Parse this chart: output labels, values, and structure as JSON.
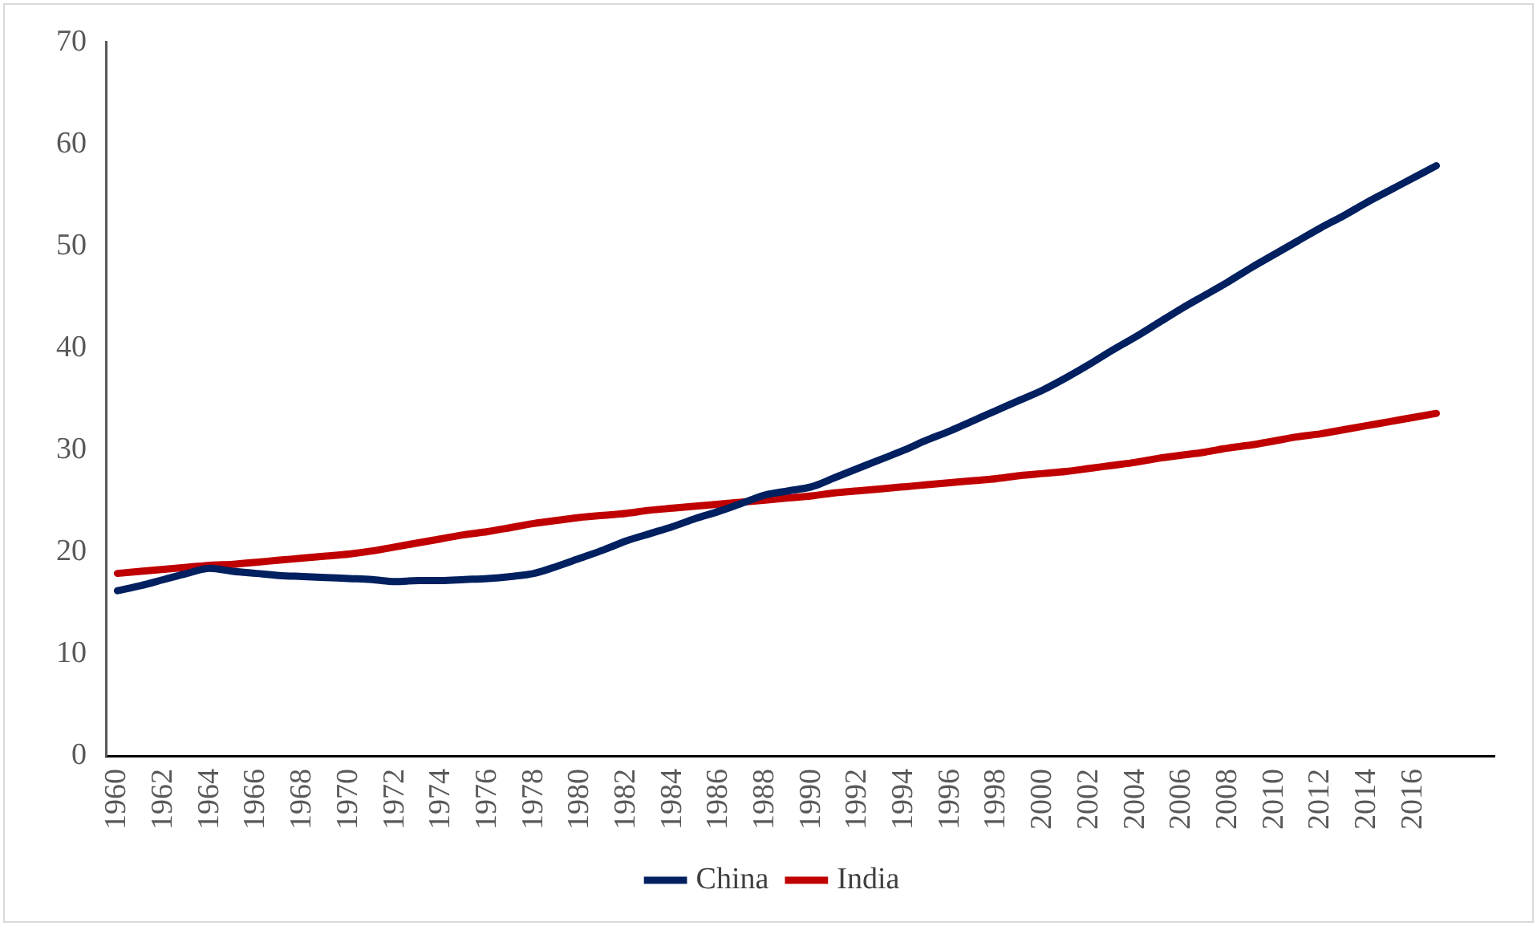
{
  "chart_data": {
    "type": "line",
    "categories": [
      "1960",
      null,
      "1962",
      null,
      "1964",
      null,
      "1966",
      null,
      "1968",
      null,
      "1970",
      null,
      "1972",
      null,
      "1974",
      null,
      "1976",
      null,
      "1978",
      null,
      "1980",
      null,
      "1982",
      null,
      "1984",
      null,
      "1986",
      null,
      "1988",
      null,
      "1990",
      null,
      "1992",
      null,
      "1994",
      null,
      "1996",
      null,
      "1998",
      null,
      "2000",
      null,
      "2002",
      null,
      "2004",
      null,
      "2006",
      null,
      "2008",
      null,
      "2010",
      null,
      "2012",
      null,
      "2014",
      null,
      "2016",
      null,
      null,
      null
    ],
    "series": [
      {
        "name": "China",
        "color": "#002060",
        "values": [
          16.2,
          16.7,
          17.3,
          17.9,
          18.4,
          18.1,
          17.9,
          17.7,
          17.6,
          17.5,
          17.4,
          17.3,
          17.1,
          17.2,
          17.2,
          17.3,
          17.4,
          17.6,
          17.9,
          18.6,
          19.4,
          20.2,
          21.1,
          21.8,
          22.5,
          23.3,
          24.0,
          24.8,
          25.6,
          26.0,
          26.4,
          27.3,
          28.2,
          29.1,
          30.0,
          31.0,
          31.9,
          32.9,
          33.9,
          34.9,
          35.9,
          37.1,
          38.4,
          39.8,
          41.1,
          42.5,
          43.9,
          45.2,
          46.5,
          47.9,
          49.2,
          50.5,
          51.8,
          53.0,
          54.3,
          55.5,
          56.7,
          57.9,
          null,
          null
        ]
      },
      {
        "name": "India",
        "color": "#c00000",
        "values": [
          17.9,
          18.1,
          18.3,
          18.5,
          18.7,
          18.8,
          19.0,
          19.2,
          19.4,
          19.6,
          19.8,
          20.1,
          20.5,
          20.9,
          21.3,
          21.7,
          22.0,
          22.4,
          22.8,
          23.1,
          23.4,
          23.6,
          23.8,
          24.1,
          24.3,
          24.5,
          24.7,
          24.9,
          25.1,
          25.3,
          25.5,
          25.8,
          26.0,
          26.2,
          26.4,
          26.6,
          26.8,
          27.0,
          27.2,
          27.5,
          27.7,
          27.9,
          28.2,
          28.5,
          28.8,
          29.2,
          29.5,
          29.8,
          30.2,
          30.5,
          30.9,
          31.3,
          31.6,
          32.0,
          32.4,
          32.8,
          33.2,
          33.6,
          null,
          null
        ]
      }
    ],
    "ylim": [
      0,
      70
    ],
    "yticks": [
      0,
      10,
      20,
      30,
      40,
      50,
      60,
      70
    ],
    "grid": false,
    "legend": "bottom",
    "marker": "none",
    "line_style": "solid"
  }
}
